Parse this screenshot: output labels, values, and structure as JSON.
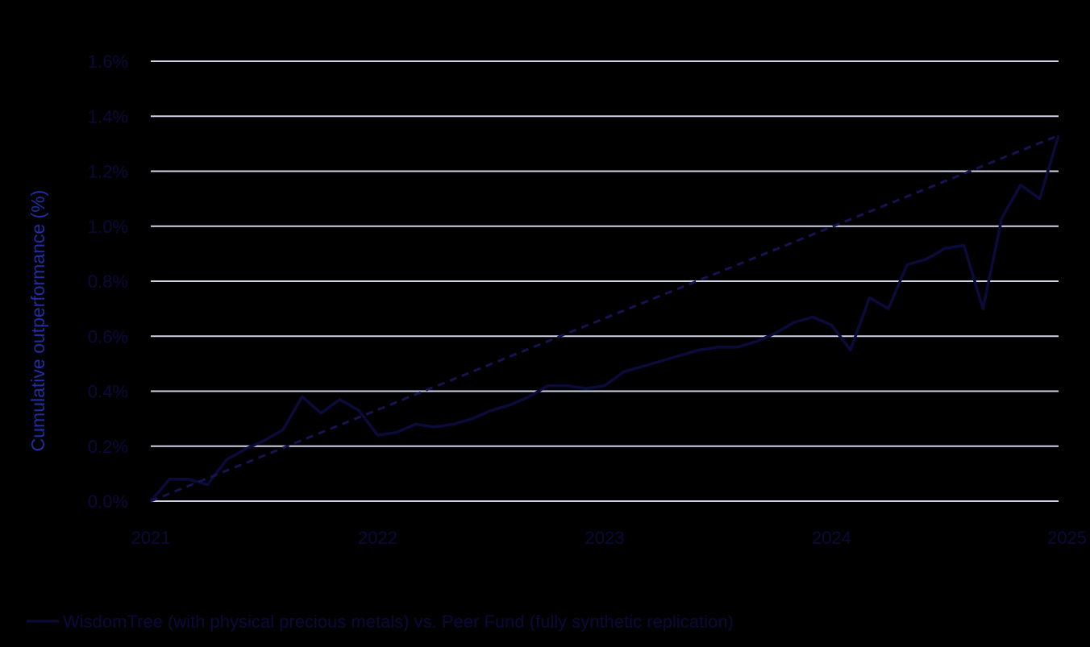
{
  "chart_data": {
    "type": "line",
    "title": "",
    "xlabel": "",
    "ylabel": "Cumulative outperformance (%)",
    "xlim": [
      2021,
      2025
    ],
    "ylim": [
      0.0,
      1.6
    ],
    "x_ticks": [
      "2021",
      "2022",
      "2023",
      "2024",
      "2025"
    ],
    "y_ticks": [
      "0.0%",
      "0.2%",
      "0.4%",
      "0.6%",
      "0.8%",
      "1.0%",
      "1.2%",
      "1.4%",
      "1.6%"
    ],
    "grid": true,
    "legend_position": "bottom-left",
    "colors": {
      "background": "#000000",
      "line": "#0b0b3b",
      "trend": "#141452",
      "grid": "#cfd3e6",
      "text": "#0a0a3a",
      "axis_title": "#1f2fa3"
    },
    "series": [
      {
        "name": "WisdomTree (with physical precious metals) vs. Peer Fund (fully synthetic replication)",
        "style": "solid",
        "x": [
          2021.0,
          2021.083,
          2021.167,
          2021.25,
          2021.333,
          2021.417,
          2021.5,
          2021.583,
          2021.667,
          2021.75,
          2021.833,
          2021.917,
          2022.0,
          2022.083,
          2022.167,
          2022.25,
          2022.333,
          2022.417,
          2022.5,
          2022.583,
          2022.667,
          2022.75,
          2022.833,
          2022.917,
          2023.0,
          2023.083,
          2023.167,
          2023.25,
          2023.333,
          2023.417,
          2023.5,
          2023.583,
          2023.667,
          2023.75,
          2023.833,
          2023.917,
          2024.0,
          2024.083,
          2024.167,
          2024.25,
          2024.333,
          2024.417,
          2024.5,
          2024.583,
          2024.667,
          2024.75,
          2024.833,
          2024.917,
          2025.0
        ],
        "values": [
          0.0,
          0.08,
          0.08,
          0.06,
          0.15,
          0.19,
          0.22,
          0.26,
          0.38,
          0.32,
          0.37,
          0.33,
          0.24,
          0.25,
          0.28,
          0.27,
          0.28,
          0.3,
          0.33,
          0.35,
          0.38,
          0.42,
          0.42,
          0.41,
          0.42,
          0.47,
          0.49,
          0.51,
          0.53,
          0.55,
          0.56,
          0.56,
          0.58,
          0.61,
          0.65,
          0.67,
          0.64,
          0.55,
          0.74,
          0.7,
          0.86,
          0.88,
          0.92,
          0.93,
          0.7,
          1.03,
          1.15,
          1.1,
          1.33
        ]
      },
      {
        "style": "dashed",
        "x": [
          2021.0,
          2025.0
        ],
        "values": [
          0.0,
          1.33
        ]
      }
    ]
  }
}
